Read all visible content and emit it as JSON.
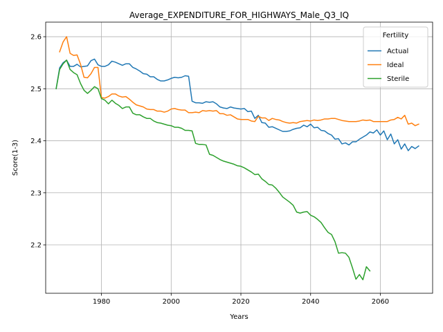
{
  "chart_data": {
    "type": "line",
    "title": "Average_EXPENDITURE_FOR_HIGHWAYS_Male_Q3_IQ",
    "xlabel": "Years",
    "ylabel": "Score(1-3)",
    "xlim": [
      1964,
      2075
    ],
    "ylim": [
      2.107,
      2.628
    ],
    "x_ticks": [
      1980,
      2000,
      2020,
      2040,
      2060
    ],
    "y_ticks": [
      2.2,
      2.3,
      2.4,
      2.5,
      2.6
    ],
    "x_tick_labels": [
      "1980",
      "2000",
      "2020",
      "2040",
      "2060"
    ],
    "y_tick_labels": [
      "2.2",
      "2.3",
      "2.4",
      "2.5",
      "2.6"
    ],
    "grid": true,
    "legend": {
      "title": "Fertility",
      "placement": "top-right"
    },
    "series": [
      {
        "name": "Actual",
        "color": "#1f77b4",
        "points": [
          [
            1967,
            2.5
          ],
          [
            1968,
            2.54
          ],
          [
            1969,
            2.55
          ],
          [
            1970,
            2.555
          ],
          [
            1971,
            2.543
          ],
          [
            1972,
            2.543
          ],
          [
            1973,
            2.547
          ],
          [
            1974,
            2.542
          ],
          [
            1975,
            2.543
          ],
          [
            1976,
            2.544
          ],
          [
            1977,
            2.554
          ],
          [
            1978,
            2.557
          ],
          [
            1979,
            2.546
          ],
          [
            1980,
            2.543
          ],
          [
            1981,
            2.543
          ],
          [
            1982,
            2.546
          ],
          [
            1983,
            2.553
          ],
          [
            1984,
            2.551
          ],
          [
            1985,
            2.548
          ],
          [
            1986,
            2.545
          ],
          [
            1987,
            2.548
          ],
          [
            1988,
            2.548
          ],
          [
            1989,
            2.541
          ],
          [
            1990,
            2.538
          ],
          [
            1991,
            2.534
          ],
          [
            1992,
            2.529
          ],
          [
            1993,
            2.528
          ],
          [
            1994,
            2.523
          ],
          [
            1995,
            2.523
          ],
          [
            1996,
            2.518
          ],
          [
            1997,
            2.515
          ],
          [
            1998,
            2.515
          ],
          [
            1999,
            2.517
          ],
          [
            2000,
            2.52
          ],
          [
            2001,
            2.522
          ],
          [
            2002,
            2.521
          ],
          [
            2003,
            2.522
          ],
          [
            2004,
            2.525
          ],
          [
            2005,
            2.524
          ],
          [
            2006,
            2.476
          ],
          [
            2007,
            2.473
          ],
          [
            2008,
            2.473
          ],
          [
            2009,
            2.472
          ],
          [
            2010,
            2.475
          ],
          [
            2011,
            2.474
          ],
          [
            2012,
            2.475
          ],
          [
            2013,
            2.471
          ],
          [
            2014,
            2.465
          ],
          [
            2015,
            2.463
          ],
          [
            2016,
            2.462
          ],
          [
            2017,
            2.465
          ],
          [
            2018,
            2.463
          ],
          [
            2019,
            2.462
          ],
          [
            2020,
            2.461
          ],
          [
            2021,
            2.462
          ],
          [
            2022,
            2.456
          ],
          [
            2023,
            2.457
          ],
          [
            2024,
            2.443
          ],
          [
            2025,
            2.449
          ],
          [
            2026,
            2.435
          ],
          [
            2027,
            2.434
          ],
          [
            2028,
            2.426
          ],
          [
            2029,
            2.427
          ],
          [
            2030,
            2.424
          ],
          [
            2031,
            2.421
          ],
          [
            2032,
            2.418
          ],
          [
            2033,
            2.418
          ],
          [
            2034,
            2.419
          ],
          [
            2035,
            2.422
          ],
          [
            2036,
            2.424
          ],
          [
            2037,
            2.425
          ],
          [
            2038,
            2.43
          ],
          [
            2039,
            2.427
          ],
          [
            2040,
            2.432
          ],
          [
            2041,
            2.425
          ],
          [
            2042,
            2.426
          ],
          [
            2043,
            2.42
          ],
          [
            2044,
            2.419
          ],
          [
            2045,
            2.414
          ],
          [
            2046,
            2.411
          ],
          [
            2047,
            2.403
          ],
          [
            2048,
            2.404
          ],
          [
            2049,
            2.394
          ],
          [
            2050,
            2.396
          ],
          [
            2051,
            2.392
          ],
          [
            2052,
            2.398
          ],
          [
            2053,
            2.398
          ],
          [
            2054,
            2.403
          ],
          [
            2055,
            2.407
          ],
          [
            2056,
            2.411
          ],
          [
            2057,
            2.417
          ],
          [
            2058,
            2.415
          ],
          [
            2059,
            2.421
          ],
          [
            2060,
            2.411
          ],
          [
            2061,
            2.419
          ],
          [
            2062,
            2.402
          ],
          [
            2063,
            2.413
          ],
          [
            2064,
            2.394
          ],
          [
            2065,
            2.402
          ],
          [
            2066,
            2.384
          ],
          [
            2067,
            2.394
          ],
          [
            2068,
            2.381
          ],
          [
            2069,
            2.389
          ],
          [
            2070,
            2.385
          ],
          [
            2071,
            2.39
          ]
        ]
      },
      {
        "name": "Ideal",
        "color": "#ff7f0e",
        "points": [
          [
            1968,
            2.571
          ],
          [
            1969,
            2.59
          ],
          [
            1970,
            2.6
          ],
          [
            1971,
            2.568
          ],
          [
            1972,
            2.564
          ],
          [
            1973,
            2.565
          ],
          [
            1974,
            2.547
          ],
          [
            1975,
            2.522
          ],
          [
            1976,
            2.521
          ],
          [
            1977,
            2.529
          ],
          [
            1978,
            2.541
          ],
          [
            1979,
            2.541
          ],
          [
            1980,
            2.483
          ],
          [
            1981,
            2.482
          ],
          [
            1982,
            2.485
          ],
          [
            1983,
            2.49
          ],
          [
            1984,
            2.49
          ],
          [
            1985,
            2.486
          ],
          [
            1986,
            2.484
          ],
          [
            1987,
            2.485
          ],
          [
            1988,
            2.48
          ],
          [
            1989,
            2.474
          ],
          [
            1990,
            2.469
          ],
          [
            1991,
            2.467
          ],
          [
            1992,
            2.465
          ],
          [
            1993,
            2.461
          ],
          [
            1994,
            2.46
          ],
          [
            1995,
            2.46
          ],
          [
            1996,
            2.457
          ],
          [
            1997,
            2.457
          ],
          [
            1998,
            2.455
          ],
          [
            1999,
            2.457
          ],
          [
            2000,
            2.461
          ],
          [
            2001,
            2.462
          ],
          [
            2002,
            2.46
          ],
          [
            2003,
            2.459
          ],
          [
            2004,
            2.459
          ],
          [
            2005,
            2.454
          ],
          [
            2006,
            2.454
          ],
          [
            2007,
            2.455
          ],
          [
            2008,
            2.454
          ],
          [
            2009,
            2.458
          ],
          [
            2010,
            2.457
          ],
          [
            2011,
            2.458
          ],
          [
            2012,
            2.457
          ],
          [
            2013,
            2.458
          ],
          [
            2014,
            2.452
          ],
          [
            2015,
            2.452
          ],
          [
            2016,
            2.449
          ],
          [
            2017,
            2.45
          ],
          [
            2018,
            2.446
          ],
          [
            2019,
            2.442
          ],
          [
            2020,
            2.441
          ],
          [
            2021,
            2.441
          ],
          [
            2022,
            2.441
          ],
          [
            2023,
            2.438
          ],
          [
            2024,
            2.437
          ],
          [
            2025,
            2.447
          ],
          [
            2026,
            2.444
          ],
          [
            2027,
            2.444
          ],
          [
            2028,
            2.439
          ],
          [
            2029,
            2.443
          ],
          [
            2030,
            2.441
          ],
          [
            2031,
            2.44
          ],
          [
            2032,
            2.437
          ],
          [
            2033,
            2.435
          ],
          [
            2034,
            2.434
          ],
          [
            2035,
            2.435
          ],
          [
            2036,
            2.434
          ],
          [
            2037,
            2.437
          ],
          [
            2038,
            2.438
          ],
          [
            2039,
            2.439
          ],
          [
            2040,
            2.438
          ],
          [
            2041,
            2.44
          ],
          [
            2042,
            2.439
          ],
          [
            2043,
            2.44
          ],
          [
            2044,
            2.442
          ],
          [
            2045,
            2.442
          ],
          [
            2046,
            2.443
          ],
          [
            2047,
            2.443
          ],
          [
            2048,
            2.441
          ],
          [
            2049,
            2.439
          ],
          [
            2050,
            2.438
          ],
          [
            2051,
            2.437
          ],
          [
            2052,
            2.437
          ],
          [
            2053,
            2.437
          ],
          [
            2054,
            2.438
          ],
          [
            2055,
            2.44
          ],
          [
            2056,
            2.439
          ],
          [
            2057,
            2.44
          ],
          [
            2058,
            2.437
          ],
          [
            2059,
            2.437
          ],
          [
            2060,
            2.437
          ],
          [
            2061,
            2.437
          ],
          [
            2062,
            2.437
          ],
          [
            2063,
            2.44
          ],
          [
            2064,
            2.441
          ],
          [
            2065,
            2.445
          ],
          [
            2066,
            2.442
          ],
          [
            2067,
            2.449
          ],
          [
            2068,
            2.432
          ],
          [
            2069,
            2.434
          ],
          [
            2070,
            2.429
          ],
          [
            2071,
            2.432
          ]
        ]
      },
      {
        "name": "Sterile",
        "color": "#2ca02c",
        "points": [
          [
            1967,
            2.5
          ],
          [
            1968,
            2.537
          ],
          [
            1969,
            2.548
          ],
          [
            1970,
            2.555
          ],
          [
            1971,
            2.537
          ],
          [
            1972,
            2.531
          ],
          [
            1973,
            2.527
          ],
          [
            1974,
            2.51
          ],
          [
            1975,
            2.497
          ],
          [
            1976,
            2.491
          ],
          [
            1977,
            2.497
          ],
          [
            1978,
            2.504
          ],
          [
            1979,
            2.5
          ],
          [
            1980,
            2.481
          ],
          [
            1981,
            2.478
          ],
          [
            1982,
            2.471
          ],
          [
            1983,
            2.478
          ],
          [
            1984,
            2.472
          ],
          [
            1985,
            2.468
          ],
          [
            1986,
            2.462
          ],
          [
            1987,
            2.465
          ],
          [
            1988,
            2.465
          ],
          [
            1989,
            2.453
          ],
          [
            1990,
            2.45
          ],
          [
            1991,
            2.45
          ],
          [
            1992,
            2.446
          ],
          [
            1993,
            2.443
          ],
          [
            1994,
            2.443
          ],
          [
            1995,
            2.438
          ],
          [
            1996,
            2.435
          ],
          [
            1997,
            2.434
          ],
          [
            1998,
            2.432
          ],
          [
            1999,
            2.43
          ],
          [
            2000,
            2.429
          ],
          [
            2001,
            2.426
          ],
          [
            2002,
            2.426
          ],
          [
            2003,
            2.424
          ],
          [
            2004,
            2.42
          ],
          [
            2005,
            2.42
          ],
          [
            2006,
            2.419
          ],
          [
            2007,
            2.395
          ],
          [
            2008,
            2.393
          ],
          [
            2009,
            2.393
          ],
          [
            2010,
            2.392
          ],
          [
            2011,
            2.374
          ],
          [
            2012,
            2.372
          ],
          [
            2013,
            2.368
          ],
          [
            2014,
            2.364
          ],
          [
            2015,
            2.361
          ],
          [
            2016,
            2.359
          ],
          [
            2017,
            2.357
          ],
          [
            2018,
            2.355
          ],
          [
            2019,
            2.352
          ],
          [
            2020,
            2.351
          ],
          [
            2021,
            2.348
          ],
          [
            2022,
            2.344
          ],
          [
            2023,
            2.34
          ],
          [
            2024,
            2.335
          ],
          [
            2025,
            2.336
          ],
          [
            2026,
            2.327
          ],
          [
            2027,
            2.322
          ],
          [
            2028,
            2.316
          ],
          [
            2029,
            2.315
          ],
          [
            2030,
            2.309
          ],
          [
            2031,
            2.301
          ],
          [
            2032,
            2.292
          ],
          [
            2033,
            2.287
          ],
          [
            2034,
            2.282
          ],
          [
            2035,
            2.276
          ],
          [
            2036,
            2.263
          ],
          [
            2037,
            2.261
          ],
          [
            2038,
            2.263
          ],
          [
            2039,
            2.264
          ],
          [
            2040,
            2.257
          ],
          [
            2041,
            2.254
          ],
          [
            2042,
            2.249
          ],
          [
            2043,
            2.243
          ],
          [
            2044,
            2.233
          ],
          [
            2045,
            2.224
          ],
          [
            2046,
            2.22
          ],
          [
            2047,
            2.206
          ],
          [
            2048,
            2.184
          ],
          [
            2049,
            2.185
          ],
          [
            2050,
            2.184
          ],
          [
            2051,
            2.176
          ],
          [
            2052,
            2.156
          ],
          [
            2053,
            2.134
          ],
          [
            2054,
            2.143
          ],
          [
            2055,
            2.133
          ],
          [
            2056,
            2.158
          ],
          [
            2057,
            2.15
          ]
        ]
      }
    ]
  }
}
